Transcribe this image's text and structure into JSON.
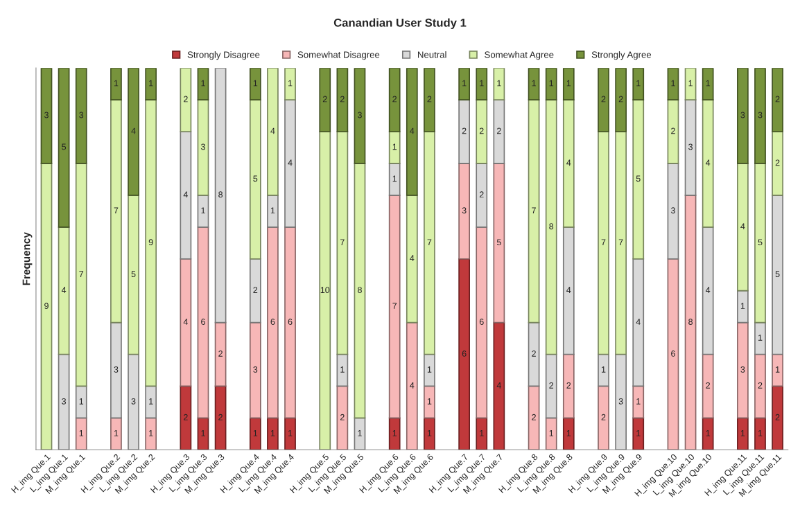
{
  "chart_data": {
    "type": "bar",
    "title": "Canandian User Study 1",
    "ylabel": "Frequency",
    "stacked": true,
    "data_labels": true,
    "legend": "top",
    "grid": false,
    "tick_labels": "x",
    "ylim": [
      0,
      12
    ],
    "categories": [
      "H_img Que.1",
      "L_img Que.1",
      "M_img Que.1",
      null,
      "H_img Que.2",
      "L_img Que.2",
      "M_img Que.2",
      null,
      "H_img Que.3",
      "L_img Que.3",
      "M_img Que.3",
      null,
      "H_img Que.4",
      "L_img Que.4",
      "M_img Que.4",
      null,
      "H_img Que.5",
      "L_img Que.5",
      "M_img Que.5",
      null,
      "H_img Que.6",
      "L_img Que.6",
      "M_img Que.6",
      null,
      "H_img Que.7",
      "L_img Que.7",
      "M_img Que.7",
      null,
      "H_img Que.8",
      "L_img Que.8",
      "M_img Que.8",
      null,
      "H_img Que.9",
      "L_img Que.9",
      "M_img Que.9",
      null,
      "H_img Que.10",
      "L_img Que.10",
      "M_img Que.10",
      null,
      "H_img Que.11",
      "L_img Que.11",
      "M_img Que.11"
    ],
    "series": [
      {
        "name": "Strongly Disagree",
        "color": "#c0393b",
        "values": [
          null,
          null,
          null,
          null,
          null,
          null,
          null,
          null,
          2,
          1,
          2,
          null,
          1,
          1,
          1,
          null,
          null,
          null,
          null,
          null,
          1,
          null,
          1,
          null,
          6,
          1,
          4,
          null,
          null,
          null,
          1,
          null,
          null,
          null,
          1,
          null,
          null,
          null,
          1,
          null,
          1,
          1,
          2
        ]
      },
      {
        "name": "Somewhat Disagree",
        "color": "#f7b7b7",
        "values": [
          null,
          null,
          1,
          null,
          1,
          null,
          1,
          null,
          4,
          6,
          2,
          null,
          3,
          6,
          6,
          null,
          null,
          2,
          null,
          null,
          7,
          4,
          1,
          null,
          3,
          6,
          5,
          null,
          2,
          1,
          2,
          null,
          2,
          null,
          1,
          null,
          6,
          8,
          2,
          null,
          3,
          2,
          1
        ]
      },
      {
        "name": "Neutral",
        "color": "#d9d9d9",
        "values": [
          null,
          3,
          1,
          null,
          3,
          3,
          1,
          null,
          4,
          1,
          8,
          null,
          2,
          1,
          4,
          null,
          null,
          1,
          1,
          null,
          1,
          null,
          1,
          null,
          2,
          2,
          2,
          null,
          2,
          2,
          4,
          null,
          1,
          3,
          4,
          null,
          3,
          3,
          4,
          null,
          1,
          1,
          5
        ]
      },
      {
        "name": "Somewhat Agree",
        "color": "#d8f0a8",
        "values": [
          9,
          4,
          7,
          null,
          7,
          5,
          9,
          null,
          2,
          3,
          null,
          null,
          5,
          4,
          1,
          null,
          10,
          7,
          8,
          null,
          1,
          4,
          7,
          null,
          null,
          2,
          1,
          null,
          7,
          8,
          4,
          null,
          7,
          7,
          5,
          null,
          2,
          1,
          4,
          null,
          4,
          5,
          2
        ]
      },
      {
        "name": "Strongly Agree",
        "color": "#77933c",
        "values": [
          3,
          5,
          3,
          null,
          1,
          4,
          1,
          null,
          null,
          1,
          null,
          null,
          1,
          null,
          null,
          null,
          2,
          2,
          3,
          null,
          2,
          4,
          2,
          null,
          1,
          1,
          null,
          null,
          1,
          1,
          1,
          null,
          2,
          2,
          1,
          null,
          1,
          null,
          1,
          null,
          3,
          3,
          2
        ]
      }
    ]
  }
}
